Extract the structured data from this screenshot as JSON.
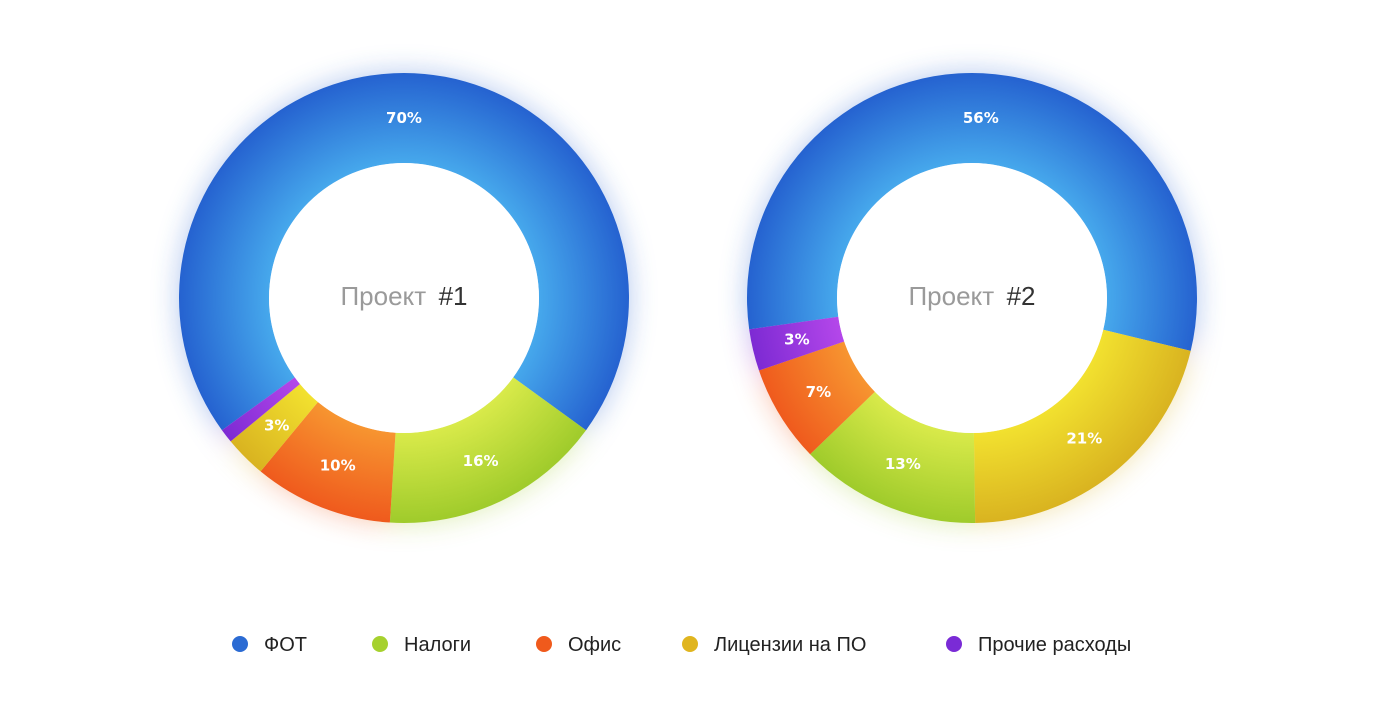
{
  "chart_data": [
    {
      "type": "pie",
      "donut": true,
      "center_label": {
        "prefix": "Проект",
        "number": "#1"
      },
      "slices": [
        {
          "category": "ФОТ",
          "value": 70,
          "label": "70%"
        },
        {
          "category": "Налоги",
          "value": 16,
          "label": "16%"
        },
        {
          "category": "Офис",
          "value": 10,
          "label": "10%"
        },
        {
          "category": "Лицензии на ПО",
          "value": 3,
          "label": "3%"
        },
        {
          "category": "Прочие расходы",
          "value": 1,
          "label": ""
        }
      ]
    },
    {
      "type": "pie",
      "donut": true,
      "center_label": {
        "prefix": "Проект",
        "number": "#2"
      },
      "slices": [
        {
          "category": "ФОТ",
          "value": 56,
          "label": "56%"
        },
        {
          "category": "Лицензии на ПО",
          "value": 21,
          "label": "21%"
        },
        {
          "category": "Налоги",
          "value": 13,
          "label": "13%"
        },
        {
          "category": "Офис",
          "value": 7,
          "label": "7%"
        },
        {
          "category": "Прочие расходы",
          "value": 3,
          "label": "3%"
        }
      ]
    }
  ],
  "legend": {
    "placement": "bottom",
    "items": [
      {
        "label": "ФОТ",
        "color": "#2b6bd3"
      },
      {
        "label": "Налоги",
        "color": "#a6d12e"
      },
      {
        "label": "Офис",
        "color": "#f05a1c"
      },
      {
        "label": "Лицензии на ПО",
        "color": "#e0b51f"
      },
      {
        "label": "Прочие расходы",
        "color": "#7a2bd6"
      }
    ]
  },
  "colors": {
    "ФОТ": {
      "light": "#46a8ec",
      "dark": "#2562d0"
    },
    "Налоги": {
      "light": "#d9ea4a",
      "dark": "#9fcb2b"
    },
    "Офис": {
      "light": "#f79530",
      "dark": "#ef5a1d"
    },
    "Лицензии на ПО": {
      "light": "#f2e12f",
      "dark": "#d9b320"
    },
    "Прочие расходы": {
      "light": "#b447ea",
      "dark": "#7d2ad3"
    }
  }
}
